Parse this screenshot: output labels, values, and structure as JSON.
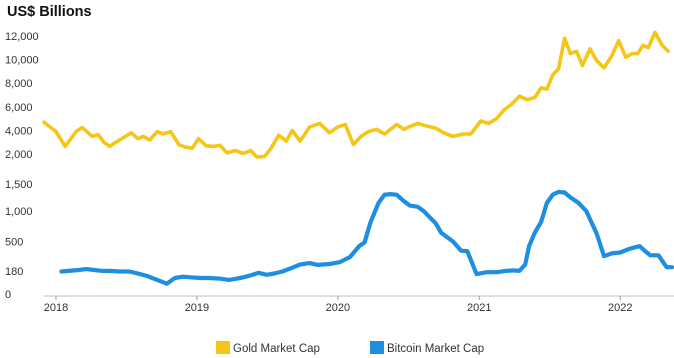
{
  "chart_data": {
    "type": "line",
    "title": "US$ Billions",
    "x_tick_labels": [
      "2018",
      "2019",
      "2020",
      "2021",
      "2022"
    ],
    "x_range": [
      "2017-12-01",
      "2022-05-15"
    ],
    "panels": [
      {
        "series_name": "Gold Market Cap",
        "color": "#F5C518",
        "y_ticks": [
          2000,
          4000,
          6000,
          8000,
          10000,
          12000
        ],
        "y_tick_labels": [
          "2,000",
          "4,000",
          "6,000",
          "8,000",
          "10,000",
          "12,000"
        ],
        "ylim": [
          1500,
          12500
        ]
      },
      {
        "series_name": "Bitcoin Market Cap",
        "color": "#1E8FE0",
        "y_ticks": [
          0,
          180,
          500,
          1000,
          1500
        ],
        "y_tick_labels": [
          "0",
          "180",
          "500",
          "1,000",
          "1,500"
        ],
        "axis_breaks": [
          [
            0,
            0
          ],
          [
            180,
            22
          ],
          [
            500,
            50
          ],
          [
            1000,
            79
          ],
          [
            1500,
            105
          ]
        ]
      }
    ],
    "series": [
      {
        "name": "Gold Market Cap",
        "x": [
          "2017-12-01",
          "2018-01-01",
          "2018-01-25",
          "2018-02-22",
          "2018-03-10",
          "2018-04-05",
          "2018-04-20",
          "2018-05-05",
          "2018-05-20",
          "2018-06-05",
          "2018-06-25",
          "2018-07-15",
          "2018-08-01",
          "2018-08-15",
          "2018-09-01",
          "2018-09-20",
          "2018-10-05",
          "2018-10-25",
          "2018-11-15",
          "2018-12-01",
          "2018-12-20",
          "2019-01-05",
          "2019-01-25",
          "2019-02-15",
          "2019-03-01",
          "2019-03-20",
          "2019-04-10",
          "2019-05-01",
          "2019-05-20",
          "2019-06-05",
          "2019-06-25",
          "2019-07-10",
          "2019-08-01",
          "2019-08-20",
          "2019-09-05",
          "2019-09-25",
          "2019-10-20",
          "2019-11-15",
          "2019-12-10",
          "2020-01-01",
          "2020-01-20",
          "2020-02-10",
          "2020-03-01",
          "2020-03-20",
          "2020-04-10",
          "2020-05-01",
          "2020-06-01",
          "2020-06-20",
          "2020-07-10",
          "2020-07-25",
          "2020-08-15",
          "2020-09-10",
          "2020-10-01",
          "2020-10-25",
          "2020-11-20",
          "2020-12-10",
          "2021-01-05",
          "2021-01-25",
          "2021-02-15",
          "2021-03-05",
          "2021-03-25",
          "2021-04-15",
          "2021-05-05",
          "2021-05-25",
          "2021-06-10",
          "2021-06-25",
          "2021-07-10",
          "2021-07-25",
          "2021-08-10",
          "2021-08-25",
          "2021-09-10",
          "2021-09-25",
          "2021-10-15",
          "2021-11-01",
          "2021-11-20",
          "2021-12-10",
          "2021-12-28",
          "2022-01-15",
          "2022-02-01",
          "2022-02-15",
          "2022-03-01",
          "2022-03-15",
          "2022-04-01",
          "2022-04-20",
          "2022-05-05"
        ],
        "y": [
          4700,
          3900,
          2650,
          3900,
          4250,
          3500,
          3650,
          3000,
          2650,
          3000,
          3400,
          3800,
          3300,
          3500,
          3200,
          3900,
          3700,
          3900,
          2800,
          2600,
          2500,
          3300,
          2700,
          2650,
          2750,
          2100,
          2300,
          2050,
          2300,
          1750,
          1800,
          2400,
          3600,
          3100,
          4000,
          3100,
          4300,
          4600,
          3800,
          4300,
          4500,
          2800,
          3500,
          3900,
          4100,
          3700,
          4500,
          4100,
          4400,
          4600,
          4400,
          4200,
          3800,
          3500,
          3700,
          3700,
          4800,
          4600,
          5000,
          5700,
          6200,
          6900,
          6600,
          6800,
          7600,
          7500,
          8700,
          9200,
          11800,
          10500,
          10700,
          9500,
          10900,
          9900,
          9300,
          10300,
          11600,
          10200,
          10500,
          10500,
          11200,
          11000,
          12300,
          11200,
          10700
        ]
      },
      {
        "name": "Bitcoin Market Cap",
        "x": [
          "2018-01-15",
          "2018-03-01",
          "2018-03-20",
          "2018-04-10",
          "2018-05-01",
          "2018-05-20",
          "2018-06-15",
          "2018-07-10",
          "2018-08-01",
          "2018-08-25",
          "2018-09-20",
          "2018-10-15",
          "2018-11-05",
          "2018-11-25",
          "2018-12-15",
          "2019-01-10",
          "2019-02-01",
          "2019-03-01",
          "2019-03-25",
          "2019-04-15",
          "2019-05-01",
          "2019-05-20",
          "2019-06-10",
          "2019-06-30",
          "2019-07-20",
          "2019-08-10",
          "2019-09-05",
          "2019-09-25",
          "2019-10-20",
          "2019-11-10",
          "2019-12-10",
          "2020-01-05",
          "2020-02-01",
          "2020-02-25",
          "2020-03-10",
          "2020-03-25",
          "2020-04-15",
          "2020-05-01",
          "2020-05-15",
          "2020-06-01",
          "2020-06-20",
          "2020-07-05",
          "2020-07-25",
          "2020-08-10",
          "2020-08-25",
          "2020-09-10",
          "2020-09-25",
          "2020-10-10",
          "2020-10-25",
          "2020-11-15",
          "2020-12-01",
          "2020-12-25",
          "2021-01-20",
          "2021-02-15",
          "2021-03-10",
          "2021-04-01",
          "2021-04-15",
          "2021-04-30",
          "2021-05-10",
          "2021-05-25",
          "2021-06-10",
          "2021-06-25",
          "2021-07-10",
          "2021-07-25",
          "2021-08-10",
          "2021-08-25",
          "2021-09-15",
          "2021-10-05",
          "2021-11-01",
          "2021-11-20",
          "2021-12-10",
          "2022-01-01",
          "2022-01-25",
          "2022-02-20",
          "2022-03-05",
          "2022-03-20",
          "2022-04-10",
          "2022-05-01",
          "2022-05-15"
        ],
        "y": [
          175,
          190,
          200,
          190,
          180,
          180,
          175,
          175,
          160,
          140,
          110,
          80,
          125,
          135,
          130,
          125,
          125,
          120,
          110,
          120,
          130,
          145,
          165,
          150,
          160,
          175,
          215,
          250,
          265,
          245,
          255,
          275,
          330,
          450,
          490,
          810,
          1150,
          1300,
          1310,
          1300,
          1180,
          1100,
          1080,
          1000,
          900,
          800,
          640,
          570,
          500,
          400,
          395,
          155,
          170,
          170,
          180,
          185,
          180,
          250,
          450,
          650,
          820,
          1150,
          1300,
          1350,
          1340,
          1250,
          1150,
          1000,
          630,
          340,
          370,
          380,
          420,
          450,
          400,
          350,
          350,
          220,
          220
        ]
      }
    ],
    "legend_position": "bottom-center",
    "grid": false
  }
}
